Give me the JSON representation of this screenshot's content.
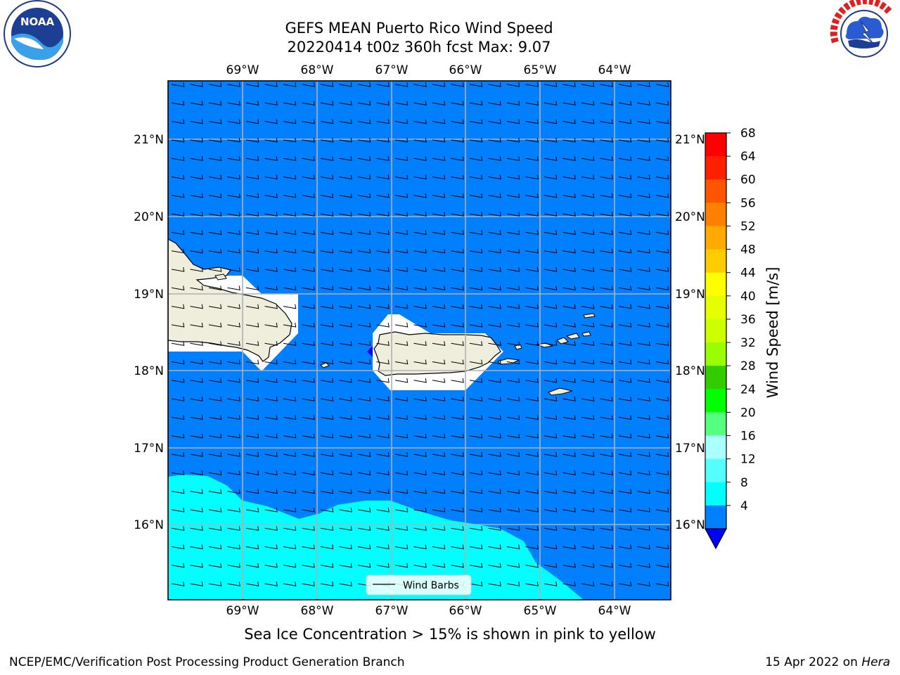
{
  "title": {
    "line1": "GEFS MEAN Puerto Rico Wind Speed",
    "line2": "20220414 t00z 360h fcst   Max: 9.07"
  },
  "map": {
    "lon_ticks": [
      "69°W",
      "68°W",
      "67°W",
      "66°W",
      "65°W",
      "64°W"
    ],
    "lat_ticks": [
      "21°N",
      "20°N",
      "19°N",
      "18°N",
      "17°N",
      "16°N"
    ],
    "extent": {
      "lon": [
        -70.0,
        -63.25
      ],
      "lat": [
        15.0,
        21.75
      ]
    },
    "legend_label": "Wind Barbs",
    "colors": {
      "ocean_4_8": "#0080ff",
      "ocean_8_12": "#00ffff",
      "land": "#efeddb",
      "mask": "#ffffff",
      "grid": "#b0b0b0",
      "low_speed": "#0000ff"
    }
  },
  "colorbar": {
    "label": "Wind Speed [m/s]",
    "ticks": [
      "68",
      "64",
      "60",
      "56",
      "52",
      "48",
      "44",
      "40",
      "36",
      "32",
      "28",
      "24",
      "20",
      "16",
      "12",
      "8",
      "4"
    ],
    "bins": [
      "#ff0000",
      "#ff2000",
      "#ff5500",
      "#ff8000",
      "#ffaa00",
      "#ffcc00",
      "#ffff00",
      "#e6ff00",
      "#ccff00",
      "#99ff00",
      "#33cc00",
      "#00ff00",
      "#55ff80",
      "#aaffff",
      "#55ffff",
      "#00ffff",
      "#0080ff"
    ],
    "under_color": "#0000ff"
  },
  "caption": "Sea Ice Concentration > 15% is shown in pink to yellow",
  "footer": {
    "left": "NCEP/EMC/Verification Post Processing Product Generation Branch",
    "date": "15 Apr 2022 on ",
    "machine": "Hera"
  },
  "logos": {
    "left_icon": "noaa-logo",
    "left_text": "NOAA",
    "right_icon": "nws-logo",
    "right_text": "NATIONAL WEATHER SERVICE"
  }
}
